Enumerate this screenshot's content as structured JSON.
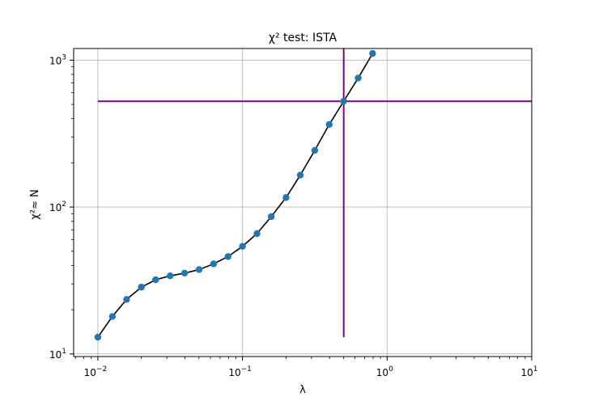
{
  "chart_data": {
    "type": "line",
    "title": "χ² test: ISTA",
    "xlabel": "λ",
    "ylabel": "χ²≈ N",
    "xscale": "log",
    "yscale": "log",
    "xlim": [
      0.0068,
      10
    ],
    "ylim": [
      9.6,
      1200
    ],
    "grid": true,
    "x_ticks": [
      {
        "base": "10",
        "exp": "−2"
      },
      {
        "base": "10",
        "exp": "−1"
      },
      {
        "base": "10",
        "exp": "0"
      },
      {
        "base": "10",
        "exp": "1"
      }
    ],
    "y_ticks": [
      {
        "base": "10",
        "exp": "1"
      },
      {
        "base": "10",
        "exp": "2"
      },
      {
        "base": "10",
        "exp": "3"
      }
    ],
    "series": [
      {
        "line_color": "#000000",
        "marker_color": "#1f77b4",
        "x": [
          0.01,
          0.0126,
          0.0158,
          0.02,
          0.0251,
          0.0316,
          0.0398,
          0.0501,
          0.0631,
          0.0794,
          0.1,
          0.126,
          0.158,
          0.2,
          0.251,
          0.316,
          0.398,
          0.501,
          0.631,
          0.794
        ],
        "y": [
          13,
          18,
          23.5,
          28.5,
          32,
          34,
          35.5,
          37.5,
          41,
          46,
          54,
          66,
          86,
          116,
          165,
          243,
          365,
          525,
          755,
          1110
        ]
      }
    ],
    "reference_lines": [
      {
        "orientation": "horizontal",
        "y": 525,
        "x_from": 0.01,
        "x_to": 10,
        "color": "#800080"
      },
      {
        "orientation": "vertical",
        "x": 0.501,
        "y_from": 13,
        "y_to": 1200,
        "color": "#800080"
      }
    ]
  }
}
